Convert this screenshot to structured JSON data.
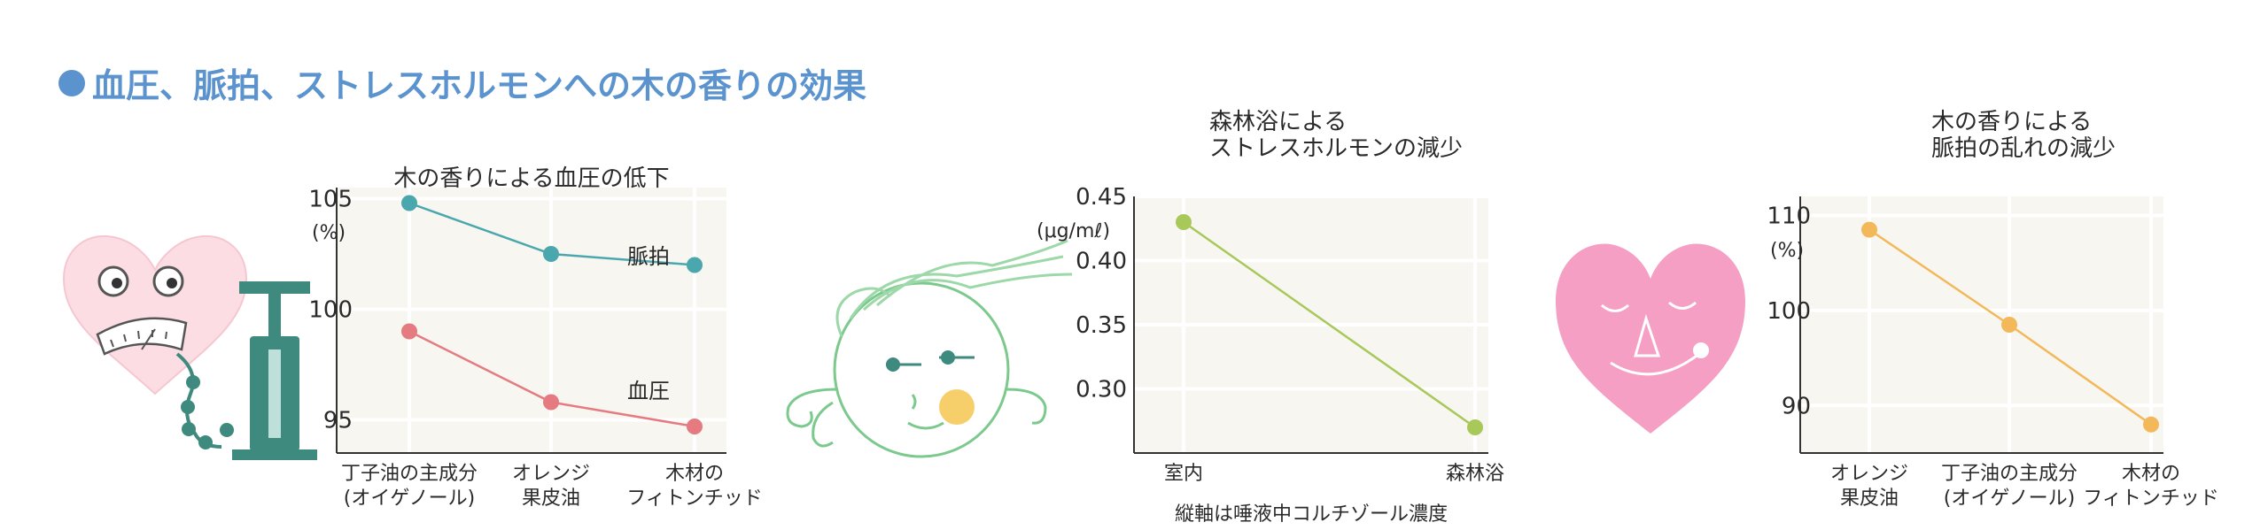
{
  "heading": "血圧、脈拍、ストレスホルモンへの木の香りの効果",
  "chart_data": [
    {
      "type": "line",
      "title": "木の香りによる血圧の低下",
      "unit": "(%)",
      "categories": [
        [
          "丁子油の主成分",
          "(オイゲノール)"
        ],
        [
          "オレンジ",
          "果皮油"
        ],
        [
          "木材の",
          "フィトンチッド"
        ]
      ],
      "series": [
        {
          "name": "脈拍",
          "values": [
            104.8,
            102.5,
            102.0
          ],
          "color": "#4aa7ae"
        },
        {
          "name": "血圧",
          "values": [
            99.0,
            95.8,
            94.7
          ],
          "color": "#e57a80"
        }
      ],
      "yticks": [
        95,
        100,
        105
      ],
      "ylim": [
        93.5,
        105.5
      ],
      "grid": true
    },
    {
      "type": "line",
      "title": [
        "森林浴による",
        "ストレスホルモンの減少"
      ],
      "unit": "(μg/mℓ)",
      "categories": [
        [
          "室内"
        ],
        [
          "森林浴"
        ]
      ],
      "series": [
        {
          "values": [
            0.43,
            0.27
          ],
          "color": "#a8c85a"
        }
      ],
      "yticks": [
        0.3,
        0.35,
        0.4,
        0.45
      ],
      "ylim": [
        0.25,
        0.45
      ],
      "footnote": "縦軸は唾液中コルチゾール濃度",
      "grid": true
    },
    {
      "type": "line",
      "title": [
        "木の香りによる",
        "脈拍の乱れの減少"
      ],
      "unit": "(%)",
      "categories": [
        [
          "オレンジ",
          "果皮油"
        ],
        [
          "丁子油の主成分",
          "(オイゲノール)"
        ],
        [
          "木材の",
          "フィトンチッド"
        ]
      ],
      "series": [
        {
          "values": [
            108.5,
            98.5,
            88.0
          ],
          "color": "#f3b85a"
        }
      ],
      "yticks": [
        90,
        100,
        110
      ],
      "ylim": [
        85,
        112
      ],
      "grid": true
    }
  ]
}
